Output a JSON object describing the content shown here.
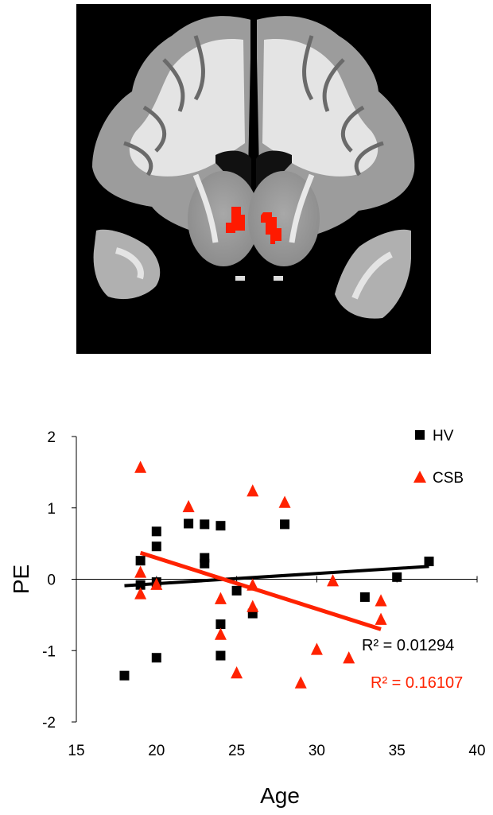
{
  "chart_data": {
    "type": "scatter",
    "xlabel": "Age",
    "ylabel": "PE",
    "xlim": [
      15,
      40
    ],
    "ylim": [
      -2,
      2
    ],
    "xticks": [
      "15",
      "20",
      "25",
      "30",
      "35",
      "40"
    ],
    "yticks": [
      "2",
      "1",
      "0",
      "-1",
      "-2"
    ],
    "legend_position": "top-right",
    "grid": false,
    "series": [
      {
        "name": "HV",
        "marker": "square",
        "color": "#000000",
        "points": [
          [
            18,
            -1.35
          ],
          [
            19,
            0.26
          ],
          [
            19,
            -0.08
          ],
          [
            20,
            0.67
          ],
          [
            20,
            0.46
          ],
          [
            20,
            -0.04
          ],
          [
            20,
            -1.1
          ],
          [
            22,
            0.78
          ],
          [
            23,
            0.77
          ],
          [
            23,
            0.3
          ],
          [
            23,
            0.22
          ],
          [
            24,
            0.75
          ],
          [
            24,
            -0.63
          ],
          [
            24,
            -1.07
          ],
          [
            25,
            -0.16
          ],
          [
            26,
            -0.48
          ],
          [
            28,
            0.77
          ],
          [
            33,
            -0.25
          ],
          [
            35,
            0.03
          ],
          [
            37,
            0.25
          ]
        ],
        "trend": {
          "x": [
            18,
            37
          ],
          "y": [
            -0.09,
            0.18
          ]
        },
        "r2_text": "R² = 0.01294"
      },
      {
        "name": "CSB",
        "marker": "triangle",
        "color": "#ff2200",
        "points": [
          [
            19,
            1.57
          ],
          [
            19,
            0.1
          ],
          [
            19,
            -0.2
          ],
          [
            20,
            -0.07
          ],
          [
            22,
            1.02
          ],
          [
            24,
            -0.27
          ],
          [
            24,
            -0.77
          ],
          [
            25,
            -1.31
          ],
          [
            26,
            1.24
          ],
          [
            26,
            -0.08
          ],
          [
            26,
            -0.38
          ],
          [
            28,
            1.08
          ],
          [
            29,
            -1.45
          ],
          [
            30,
            -0.98
          ],
          [
            31,
            -0.02
          ],
          [
            32,
            -1.1
          ],
          [
            34,
            -0.3
          ],
          [
            34,
            -0.56
          ]
        ],
        "trend": {
          "x": [
            19,
            34
          ],
          "y": [
            0.37,
            -0.7
          ]
        },
        "r2_text": "R² = 0.16107"
      }
    ]
  },
  "brain_image": {
    "description_icon": "brain-coronal-slice-icon",
    "highlight_color": "#ff1a00",
    "background_color": "#000000"
  }
}
